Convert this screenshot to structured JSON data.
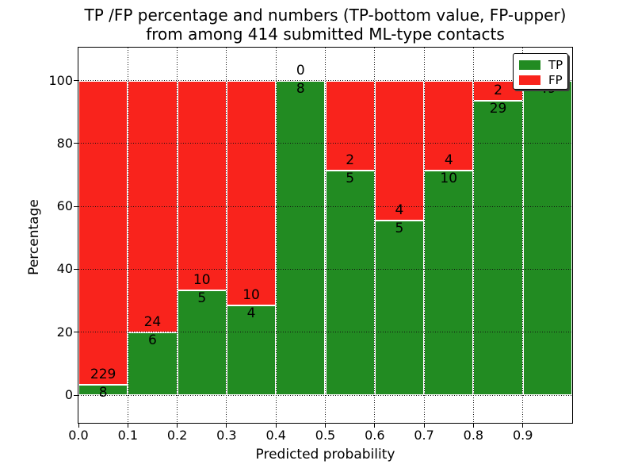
{
  "title": {
    "line1": "TP /FP percentage and numbers (TP-bottom value, FP-upper)",
    "line2": "from among 414 submitted ML-type contacts"
  },
  "axes": {
    "xlabel": "Predicted probability",
    "ylabel": "Percentage",
    "x_tick_labels": [
      "0.0",
      "0.1",
      "0.2",
      "0.3",
      "0.4",
      "0.5",
      "0.6",
      "0.7",
      "0.8",
      "0.9"
    ],
    "y_tick_labels": [
      "0",
      "20",
      "40",
      "60",
      "80",
      "100"
    ],
    "y_tick_values": [
      0,
      20,
      40,
      60,
      80,
      100
    ],
    "xlim": [
      0.0,
      1.0
    ],
    "ylim": [
      -9,
      110
    ],
    "grid_style": "dotted"
  },
  "legend": {
    "position": "upper right",
    "items": [
      {
        "label": "TP",
        "color": "#228B22"
      },
      {
        "label": "FP",
        "color": "#F9231C"
      }
    ]
  },
  "colors": {
    "tp": "#228B22",
    "fp": "#F9231C",
    "bar_edge": "#ffffff",
    "grid": "#111111",
    "background": "#ffffff"
  },
  "chart_data": {
    "type": "bar",
    "stacked": true,
    "normalized_to_percent": true,
    "total_contacts": 414,
    "bin_width": 0.1,
    "categories": [
      "0.0-0.1",
      "0.1-0.2",
      "0.2-0.3",
      "0.3-0.4",
      "0.4-0.5",
      "0.5-0.6",
      "0.6-0.7",
      "0.7-0.8",
      "0.8-0.9",
      "0.9-1.0"
    ],
    "bin_starts": [
      0.0,
      0.1,
      0.2,
      0.3,
      0.4,
      0.5,
      0.6,
      0.7,
      0.8,
      0.9
    ],
    "series": [
      {
        "name": "TP",
        "color": "#228B22",
        "counts": [
          8,
          6,
          5,
          4,
          8,
          5,
          5,
          10,
          29,
          49
        ],
        "pct": [
          3.38,
          20.0,
          33.33,
          28.57,
          100.0,
          71.43,
          55.56,
          71.43,
          93.55,
          100.0
        ]
      },
      {
        "name": "FP",
        "color": "#F9231C",
        "counts": [
          229,
          24,
          10,
          10,
          0,
          2,
          4,
          4,
          2,
          0
        ],
        "pct": [
          96.62,
          80.0,
          66.67,
          71.43,
          0.0,
          28.57,
          44.44,
          28.57,
          6.45,
          0.0
        ]
      }
    ],
    "title": "TP /FP percentage and numbers (TP-bottom value, FP-upper) from among 414 submitted ML-type contacts",
    "xlabel": "Predicted probability",
    "ylabel": "Percentage",
    "legend_position": "upper right"
  }
}
